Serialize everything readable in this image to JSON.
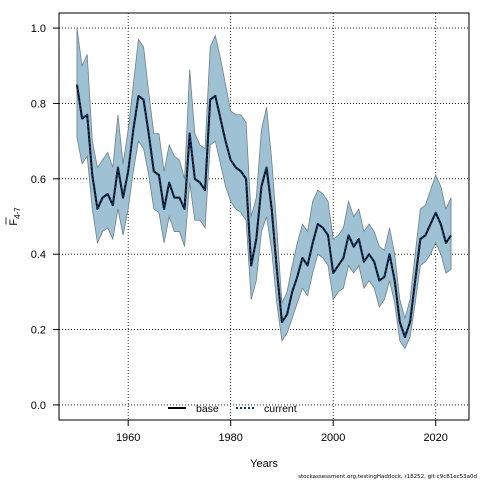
{
  "chart_data": {
    "type": "line",
    "xlabel": "Years",
    "ylabel": "F",
    "ylabel_subscript": "4-7",
    "xlim": [
      1946.5,
      2026.5
    ],
    "ylim": [
      -0.04,
      1.04
    ],
    "x_ticks": [
      1960,
      1980,
      2000,
      2020
    ],
    "y_ticks": [
      0.0,
      0.2,
      0.4,
      0.6,
      0.8,
      1.0
    ],
    "x_tick_labels": [
      "1960",
      "1980",
      "2000",
      "2020"
    ],
    "y_tick_labels": [
      "0.0",
      "0.2",
      "0.4",
      "0.6",
      "0.8",
      "1.0"
    ],
    "grid": true,
    "legend_position": "bottom-center",
    "colors": {
      "band": "#9ec1d4",
      "band_edge": "#6f7f88",
      "base": "#000000",
      "current": "#0c3b6b"
    },
    "x": [
      1950,
      1951,
      1952,
      1953,
      1954,
      1955,
      1956,
      1957,
      1958,
      1959,
      1960,
      1961,
      1962,
      1963,
      1964,
      1965,
      1966,
      1967,
      1968,
      1969,
      1970,
      1971,
      1972,
      1973,
      1974,
      1975,
      1976,
      1977,
      1978,
      1979,
      1980,
      1981,
      1982,
      1983,
      1984,
      1985,
      1986,
      1987,
      1988,
      1989,
      1990,
      1991,
      1992,
      1993,
      1994,
      1995,
      1996,
      1997,
      1998,
      1999,
      2000,
      2001,
      2002,
      2003,
      2004,
      2005,
      2006,
      2007,
      2008,
      2009,
      2010,
      2011,
      2012,
      2013,
      2014,
      2015,
      2016,
      2017,
      2018,
      2019,
      2020,
      2021,
      2022,
      2023
    ],
    "series": [
      {
        "name": "base",
        "style": "solid",
        "values": [
          0.85,
          0.76,
          0.77,
          0.61,
          0.52,
          0.55,
          0.56,
          0.53,
          0.63,
          0.55,
          0.62,
          0.73,
          0.82,
          0.81,
          0.72,
          0.62,
          0.61,
          0.52,
          0.59,
          0.55,
          0.55,
          0.52,
          0.72,
          0.6,
          0.59,
          0.57,
          0.81,
          0.82,
          0.76,
          0.7,
          0.65,
          0.63,
          0.62,
          0.6,
          0.37,
          0.44,
          0.58,
          0.63,
          0.52,
          0.36,
          0.22,
          0.24,
          0.3,
          0.34,
          0.39,
          0.37,
          0.43,
          0.48,
          0.47,
          0.45,
          0.35,
          0.37,
          0.39,
          0.45,
          0.42,
          0.44,
          0.38,
          0.4,
          0.38,
          0.33,
          0.34,
          0.4,
          0.33,
          0.22,
          0.18,
          0.22,
          0.33,
          0.44,
          0.45,
          0.48,
          0.51,
          0.48,
          0.43,
          0.45
        ]
      },
      {
        "name": "current",
        "style": "dotted",
        "values": [
          0.85,
          0.76,
          0.77,
          0.61,
          0.52,
          0.55,
          0.56,
          0.53,
          0.63,
          0.55,
          0.62,
          0.73,
          0.82,
          0.81,
          0.72,
          0.62,
          0.61,
          0.52,
          0.59,
          0.55,
          0.55,
          0.52,
          0.72,
          0.6,
          0.59,
          0.57,
          0.81,
          0.82,
          0.76,
          0.7,
          0.65,
          0.63,
          0.62,
          0.6,
          0.37,
          0.44,
          0.58,
          0.63,
          0.52,
          0.36,
          0.22,
          0.24,
          0.3,
          0.34,
          0.39,
          0.37,
          0.43,
          0.48,
          0.47,
          0.45,
          0.35,
          0.37,
          0.39,
          0.45,
          0.42,
          0.44,
          0.38,
          0.4,
          0.38,
          0.33,
          0.34,
          0.4,
          0.33,
          0.22,
          0.18,
          0.22,
          0.33,
          0.44,
          0.45,
          0.48,
          0.51,
          0.48,
          0.43,
          0.45
        ]
      }
    ],
    "band_upper": [
      1.0,
      0.9,
      0.93,
      0.7,
      0.63,
      0.65,
      0.67,
      0.63,
      0.77,
      0.64,
      0.73,
      0.85,
      0.97,
      0.95,
      0.83,
      0.72,
      0.72,
      0.62,
      0.69,
      0.66,
      0.65,
      0.6,
      0.89,
      0.72,
      0.69,
      0.68,
      0.95,
      0.98,
      0.92,
      0.85,
      0.78,
      0.77,
      0.77,
      0.75,
      0.5,
      0.55,
      0.73,
      0.79,
      0.65,
      0.47,
      0.27,
      0.3,
      0.37,
      0.43,
      0.48,
      0.46,
      0.54,
      0.57,
      0.56,
      0.54,
      0.44,
      0.45,
      0.47,
      0.54,
      0.5,
      0.52,
      0.46,
      0.48,
      0.46,
      0.42,
      0.41,
      0.47,
      0.4,
      0.28,
      0.23,
      0.28,
      0.4,
      0.52,
      0.53,
      0.57,
      0.61,
      0.58,
      0.52,
      0.55
    ],
    "band_lower": [
      0.71,
      0.64,
      0.66,
      0.52,
      0.43,
      0.46,
      0.47,
      0.44,
      0.52,
      0.45,
      0.52,
      0.62,
      0.7,
      0.68,
      0.61,
      0.52,
      0.51,
      0.43,
      0.5,
      0.46,
      0.46,
      0.42,
      0.59,
      0.49,
      0.49,
      0.47,
      0.69,
      0.7,
      0.64,
      0.58,
      0.54,
      0.52,
      0.51,
      0.49,
      0.28,
      0.33,
      0.46,
      0.5,
      0.41,
      0.27,
      0.17,
      0.19,
      0.23,
      0.27,
      0.31,
      0.29,
      0.35,
      0.4,
      0.39,
      0.37,
      0.28,
      0.3,
      0.31,
      0.37,
      0.35,
      0.37,
      0.31,
      0.33,
      0.31,
      0.26,
      0.28,
      0.33,
      0.27,
      0.17,
      0.15,
      0.18,
      0.27,
      0.37,
      0.38,
      0.4,
      0.43,
      0.4,
      0.35,
      0.36
    ],
    "legend": [
      {
        "label": "base",
        "style": "solid"
      },
      {
        "label": "current",
        "style": "dotted"
      }
    ]
  },
  "footnote": "stockassessment.org,testingHaddock, r18252, git:c9c81ec53a0d"
}
